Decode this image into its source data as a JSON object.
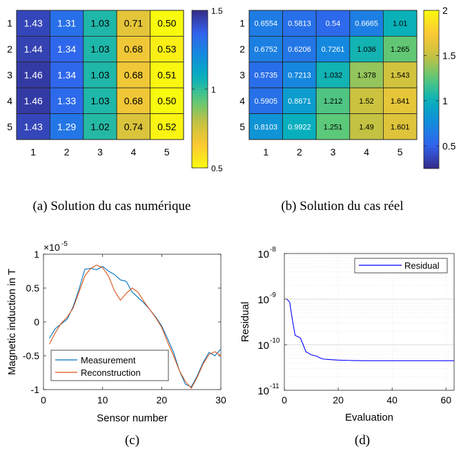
{
  "chart_data": [
    {
      "type": "heatmap",
      "caption": "(a) Solution du cas numérique",
      "x_ticks": [
        "1",
        "2",
        "3",
        "4",
        "5"
      ],
      "y_ticks": [
        "1",
        "2",
        "3",
        "4",
        "5"
      ],
      "values": [
        [
          "1.43",
          "1.31",
          "1.03",
          "0.71",
          "0.50"
        ],
        [
          "1.44",
          "1.34",
          "1.03",
          "0.68",
          "0.53"
        ],
        [
          "1.46",
          "1.34",
          "1.03",
          "0.68",
          "0.51"
        ],
        [
          "1.46",
          "1.33",
          "1.03",
          "0.68",
          "0.50"
        ],
        [
          "1.43",
          "1.29",
          "1.02",
          "0.74",
          "0.52"
        ]
      ],
      "clim": [
        0.5,
        1.5
      ],
      "colormap": "parula-reversed",
      "colorbar_ticks": [
        "1.5",
        "1",
        "0.5"
      ]
    },
    {
      "type": "heatmap",
      "caption": "(b) Solution du cas réel",
      "x_ticks": [
        "1",
        "2",
        "3",
        "4",
        "5"
      ],
      "y_ticks": [
        "1",
        "2",
        "3",
        "4",
        "5"
      ],
      "values": [
        [
          "0.6554",
          "0.5813",
          "0.54",
          "0.6665",
          "1.01"
        ],
        [
          "0.6752",
          "0.6206",
          "0.7261",
          "1.036",
          "1.265"
        ],
        [
          "0.5735",
          "0.7213",
          "1.032",
          "1.378",
          "1.543"
        ],
        [
          "0.5905",
          "0.8671",
          "1.212",
          "1.52",
          "1.641"
        ],
        [
          "0.8103",
          "0.9922",
          "1.251",
          "1.49",
          "1.601"
        ]
      ],
      "clim": [
        0.25,
        2.0
      ],
      "colormap": "parula",
      "colorbar_ticks": [
        "2",
        "1.5",
        "1",
        "0.5"
      ]
    },
    {
      "type": "line",
      "caption": "(c)",
      "xlabel": "Sensor number",
      "ylabel": "Magnetic induction in T",
      "y_exponent": "×10",
      "y_exponent_power": "-5",
      "xlim": [
        0,
        30
      ],
      "ylim": [
        -1,
        1
      ],
      "x_ticks": [
        "0",
        "10",
        "20",
        "30"
      ],
      "y_ticks": [
        "1",
        "0.5",
        "0",
        "-0.5",
        "-1"
      ],
      "legend_position": "bottom-left",
      "grid": false,
      "series": [
        {
          "name": "Measurement",
          "color": "#0072BD",
          "x": [
            1,
            2,
            3,
            4,
            5,
            6,
            7,
            8,
            9,
            10,
            11,
            12,
            13,
            14,
            15,
            16,
            17,
            18,
            19,
            20,
            21,
            22,
            23,
            24,
            25,
            26,
            27,
            28,
            29,
            30
          ],
          "y": [
            -0.24,
            -0.1,
            -0.03,
            0.04,
            0.22,
            0.48,
            0.78,
            0.79,
            0.77,
            0.82,
            0.75,
            0.7,
            0.62,
            0.6,
            0.44,
            0.36,
            0.28,
            0.18,
            0.07,
            -0.06,
            -0.25,
            -0.45,
            -0.72,
            -0.92,
            -0.96,
            -0.8,
            -0.6,
            -0.45,
            -0.5,
            -0.4
          ]
        },
        {
          "name": "Reconstruction",
          "color": "#D95319",
          "x": [
            1,
            2,
            3,
            4,
            5,
            6,
            7,
            8,
            9,
            10,
            11,
            12,
            13,
            14,
            15,
            16,
            17,
            18,
            19,
            20,
            21,
            22,
            23,
            24,
            25,
            26,
            27,
            28,
            29,
            30
          ],
          "y": [
            -0.33,
            -0.16,
            -0.02,
            0.07,
            0.2,
            0.44,
            0.68,
            0.79,
            0.84,
            0.8,
            0.68,
            0.46,
            0.32,
            0.42,
            0.5,
            0.44,
            0.3,
            0.18,
            0.06,
            -0.08,
            -0.3,
            -0.5,
            -0.72,
            -0.88,
            -0.98,
            -0.82,
            -0.62,
            -0.48,
            -0.44,
            -0.5
          ]
        }
      ]
    },
    {
      "type": "line",
      "caption": "(d)",
      "xlabel": "Evaluation",
      "ylabel": "Residual",
      "xlim": [
        0,
        63
      ],
      "ylim_log10": [
        -11,
        -8
      ],
      "y_scale": "log",
      "x_ticks": [
        "0",
        "20",
        "40",
        "60"
      ],
      "y_tick_base": "10",
      "y_tick_powers": [
        "-8",
        "-9",
        "-10",
        "-11"
      ],
      "legend_position": "top-right",
      "grid": true,
      "series": [
        {
          "name": "Residual",
          "color": "#0000FF",
          "x": [
            1,
            2,
            3,
            4,
            5,
            6,
            7,
            8,
            9,
            10,
            11,
            12,
            13,
            14,
            15,
            16,
            20,
            25,
            30,
            40,
            50,
            60,
            63
          ],
          "y": [
            1e-09,
            8.5e-10,
            3.5e-10,
            1.6e-10,
            1.5e-10,
            1.4e-10,
            1e-10,
            7e-11,
            6.5e-11,
            6e-11,
            5.8e-11,
            5.6e-11,
            5.2e-11,
            4.9e-11,
            4.8e-11,
            4.75e-11,
            4.6e-11,
            4.5e-11,
            4.45e-11,
            4.45e-11,
            4.45e-11,
            4.45e-11,
            4.45e-11
          ]
        }
      ]
    }
  ]
}
